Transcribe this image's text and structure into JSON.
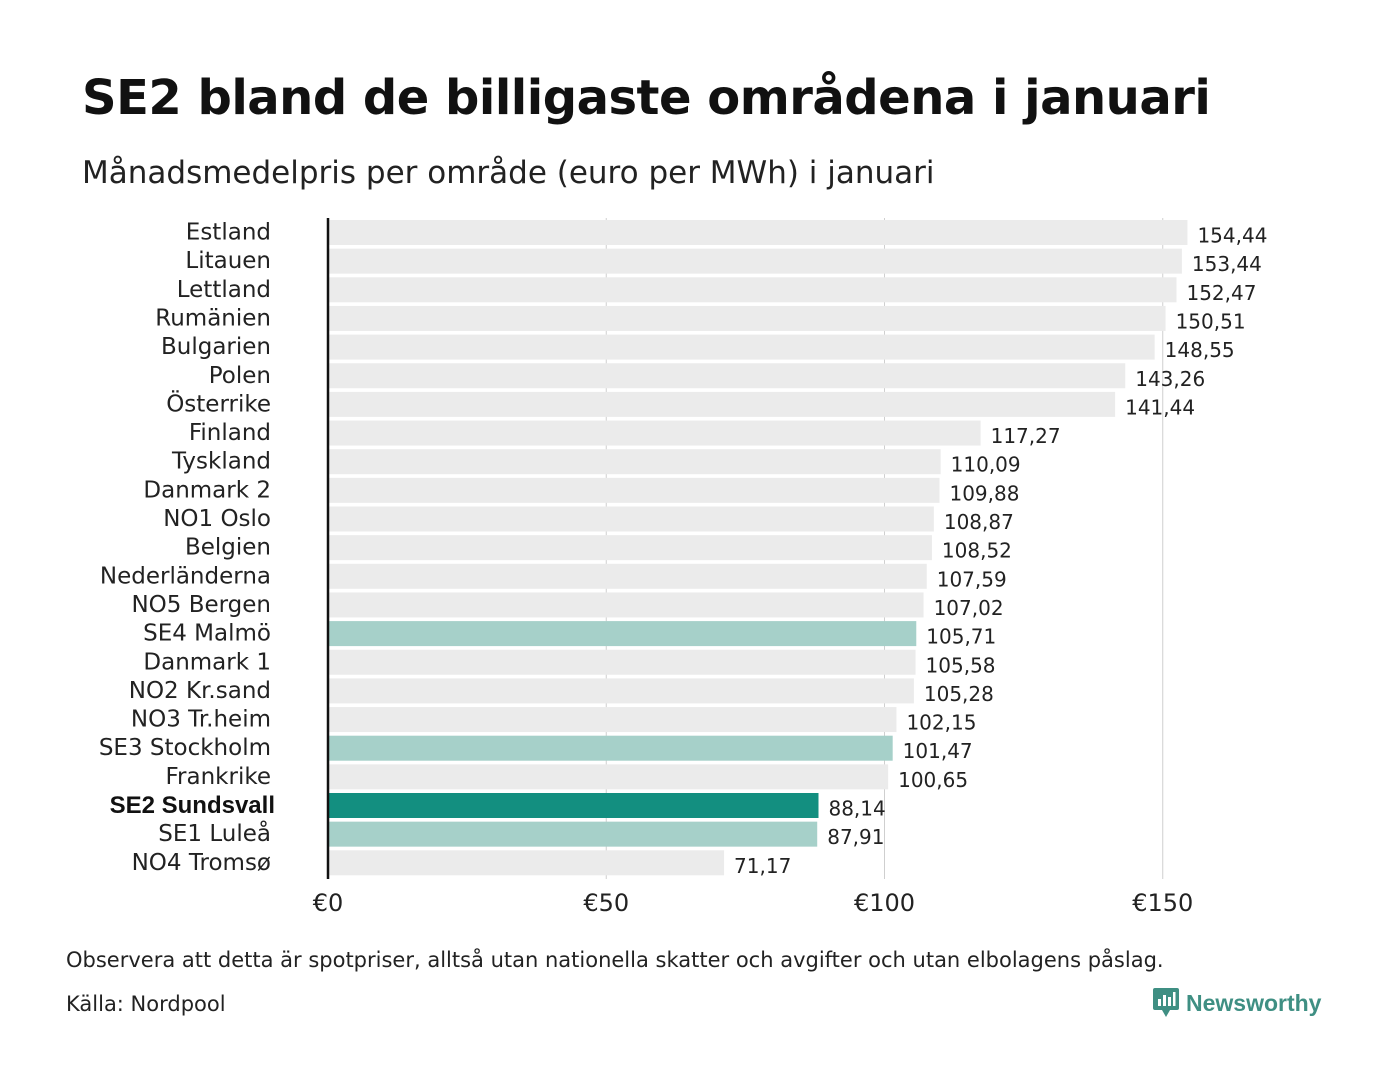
{
  "brand": {
    "name": "Newsworthy",
    "color": "#3f8f83"
  },
  "colors": {
    "default": "#ebebeb",
    "se_other": "#a6d0c9",
    "se_highlight": "#138f80",
    "axis": "#111111",
    "grid": "#cfcfcf"
  },
  "footer": {
    "note": "Observera att detta är spotpriser, alltså utan nationella skatter och avgifter och utan elbolagens påslag.",
    "source": "Källa: Nordpool"
  },
  "chart_data": {
    "type": "bar",
    "orientation": "horizontal",
    "title": "SE2 bland de billigaste områdena i januari",
    "subtitle": "Månadsmedelpris per område (euro per MWh) i januari",
    "xlabel": "",
    "ylabel": "",
    "xlim": [
      0,
      175
    ],
    "grid": true,
    "tick_values": [
      0,
      50,
      100,
      150
    ],
    "tick_labels": [
      "€0",
      "€50",
      "€100",
      "€150"
    ],
    "categories": [
      "Estland",
      "Litauen",
      "Lettland",
      "Rumänien",
      "Bulgarien",
      "Polen",
      "Österrike",
      "Finland",
      "Tyskland",
      "Danmark  2",
      "NO1 Oslo",
      "Belgien",
      "Nederländerna",
      "NO5 Bergen",
      "SE4  Malmö",
      "Danmark  1",
      "NO2 Kr.sand",
      "NO3 Tr.heim",
      "SE3  Stockholm",
      "Frankrike",
      "SE2 Sundsvall",
      "SE1  Luleå",
      "NO4 Tromsø"
    ],
    "values": [
      154.44,
      153.44,
      152.47,
      150.51,
      148.55,
      143.26,
      141.44,
      117.27,
      110.09,
      109.88,
      108.87,
      108.52,
      107.59,
      107.02,
      105.71,
      105.58,
      105.28,
      102.15,
      101.47,
      100.65,
      88.14,
      87.91,
      71.17
    ],
    "value_labels": [
      "154,44",
      "153,44",
      "152,47",
      "150,51",
      "148,55",
      "143,26",
      "141,44",
      "117,27",
      "110,09",
      "109,88",
      "108,87",
      "108,52",
      "107,59",
      "107,02",
      "105,71",
      "105,58",
      "105,28",
      "102,15",
      "101,47",
      "100,65",
      "88,14",
      "87,91",
      "71,17"
    ],
    "groups": [
      "default",
      "default",
      "default",
      "default",
      "default",
      "default",
      "default",
      "default",
      "default",
      "default",
      "default",
      "default",
      "default",
      "default",
      "se_other",
      "default",
      "default",
      "default",
      "se_other",
      "default",
      "se_highlight",
      "se_other",
      "default"
    ],
    "highlight": "SE2 Sundsvall"
  }
}
